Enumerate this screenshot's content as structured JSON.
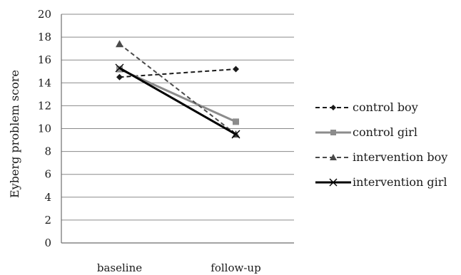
{
  "chart_data": {
    "type": "line",
    "categories": [
      "baseline",
      "follow-up"
    ],
    "ylabel": "Eyberg problem score",
    "ylim": [
      0,
      20
    ],
    "yticks": [
      0,
      2,
      4,
      6,
      8,
      10,
      12,
      14,
      16,
      18,
      20
    ],
    "grid": true,
    "legend_position": "right",
    "series": [
      {
        "name": "control boy",
        "values": [
          14.5,
          15.2
        ],
        "color": "#1a1a1a",
        "dash": "dashed",
        "marker": "diamond"
      },
      {
        "name": "control girl",
        "values": [
          15.2,
          10.6
        ],
        "color": "#8c8c8c",
        "dash": "solid",
        "marker": "square"
      },
      {
        "name": "intervention boy",
        "values": [
          17.4,
          9.5
        ],
        "color": "#4a4a4a",
        "dash": "dashed",
        "marker": "triangle"
      },
      {
        "name": "intervention girl",
        "values": [
          15.3,
          9.5
        ],
        "color": "#000000",
        "dash": "solid",
        "marker": "x"
      }
    ]
  }
}
